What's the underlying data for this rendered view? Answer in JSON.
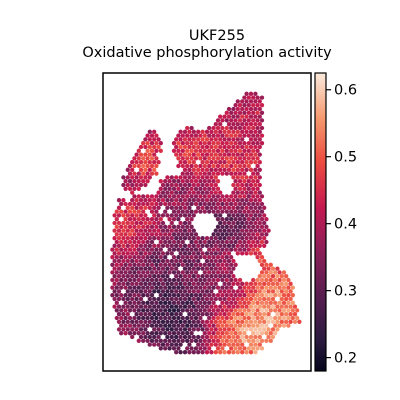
{
  "chart_data": {
    "type": "heatmap",
    "subtype": "spatial-hex-scatter",
    "title": [
      "UKF255",
      "Oxidative phosphorylation activity"
    ],
    "xlabel": "",
    "ylabel": "",
    "axes_ticks": false,
    "grid": false,
    "colorbar": {
      "colormap": "rocket",
      "range": [
        0.18,
        0.625
      ],
      "ticks": [
        0.2,
        0.3,
        0.4,
        0.5,
        0.6
      ],
      "tick_labels": [
        "0.2",
        "0.3",
        "0.4",
        "0.5",
        "0.6"
      ],
      "placement": "right"
    },
    "value_summary": {
      "min": 0.18,
      "max": 0.62,
      "high_region": "bottom-right",
      "low_region": "bottom-center"
    }
  }
}
